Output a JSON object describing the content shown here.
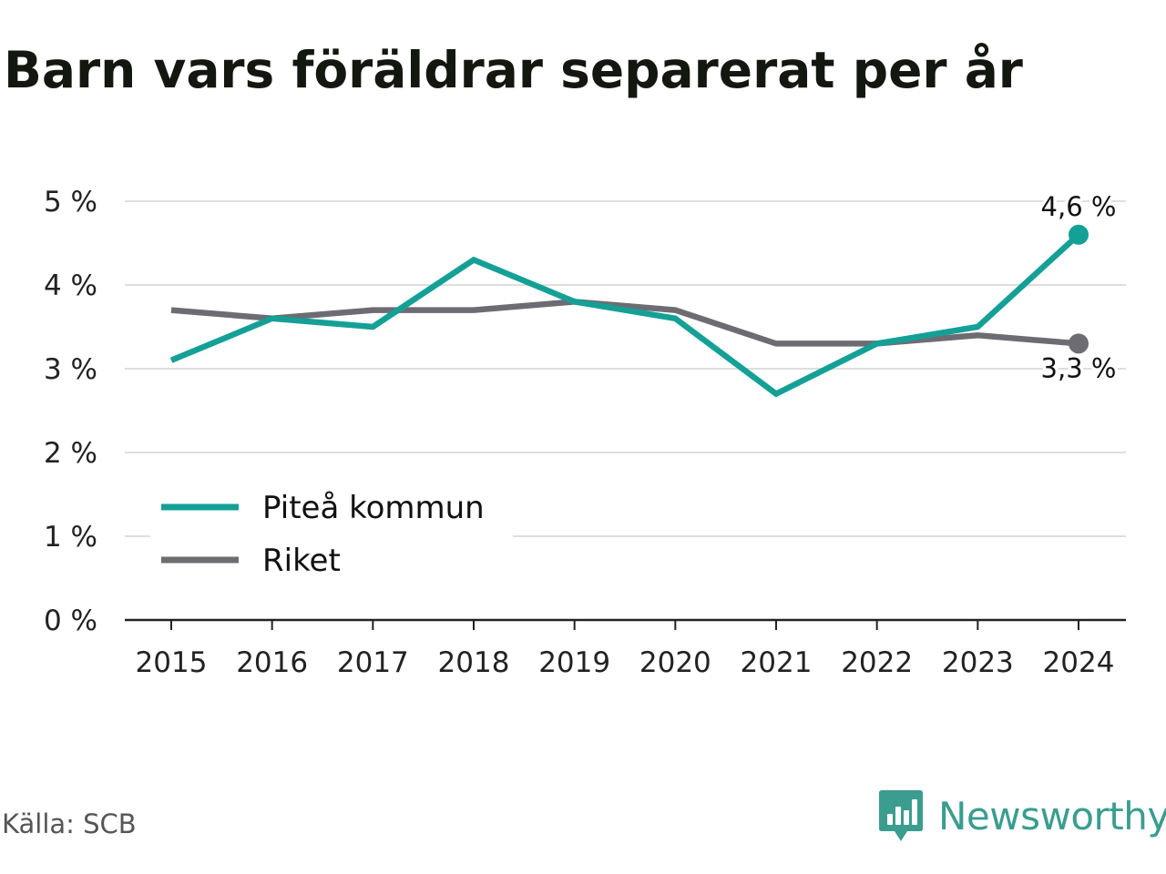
{
  "title": "Barn vars föräldrar separerat per år",
  "source": "Källa: SCB",
  "brand": {
    "name": "Newsworthy",
    "icon": "newsworthy-logo-icon",
    "color": "#3a9d8f"
  },
  "chart_data": {
    "type": "line",
    "title": "Barn vars föräldrar separerat per år",
    "x": [
      "2015",
      "2016",
      "2017",
      "2018",
      "2019",
      "2020",
      "2021",
      "2022",
      "2023",
      "2024"
    ],
    "ylim": [
      0,
      5
    ],
    "yticks": [
      0,
      1,
      2,
      3,
      4,
      5
    ],
    "ytick_labels": [
      "0 %",
      "1 %",
      "2 %",
      "3 %",
      "4 %",
      "5 %"
    ],
    "grid": true,
    "legend": "bottom-left",
    "series": [
      {
        "name": "Piteå kommun",
        "color": "#14a096",
        "values": [
          3.1,
          3.6,
          3.5,
          4.3,
          3.8,
          3.6,
          2.7,
          3.3,
          3.5,
          4.6
        ],
        "end_label": "4,6 %"
      },
      {
        "name": "Riket",
        "color": "#6e6c73",
        "values": [
          3.7,
          3.6,
          3.7,
          3.7,
          3.8,
          3.7,
          3.3,
          3.3,
          3.4,
          3.3
        ],
        "end_label": "3,3 %"
      }
    ]
  }
}
